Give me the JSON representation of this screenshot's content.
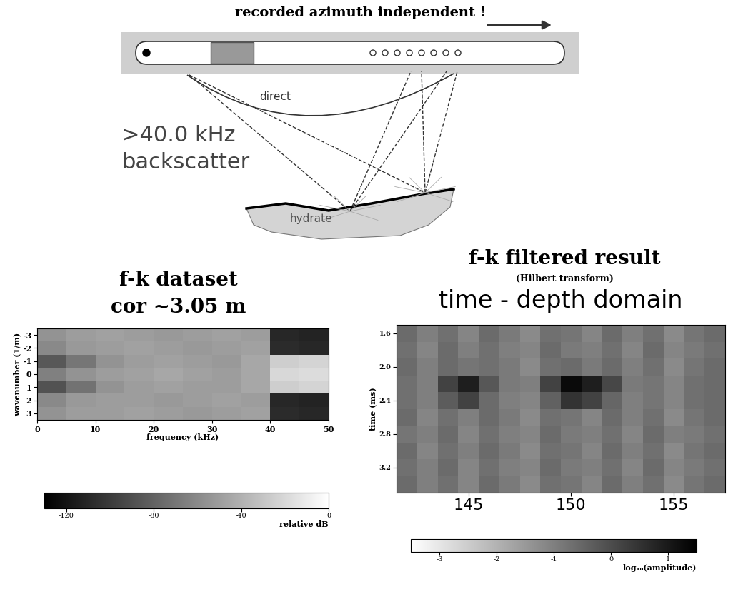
{
  "diagram": {
    "title": "recorded azimuth independent !",
    "source_label": [
      ">40.0 kHz",
      "backscatter"
    ],
    "ray_label": "direct",
    "target_label": "hydrate"
  },
  "chart_data": [
    {
      "type": "heatmap",
      "title": "f-k dataset",
      "subtitle": "cor ~3.05 m",
      "x_label": "frequency (kHz)",
      "y_label": "wavenumber (1/m)",
      "x": [
        2.5,
        7.5,
        12.5,
        17.5,
        22.5,
        27.5,
        32.5,
        37.5,
        42.5,
        47.5
      ],
      "y": [
        -3,
        -2,
        -1,
        0,
        1,
        2,
        3
      ],
      "cells": [
        [
          -55,
          -50,
          -48,
          -50,
          -52,
          -50,
          -48,
          -50,
          -110,
          -112
        ],
        [
          -60,
          -52,
          -50,
          -48,
          -50,
          -52,
          -50,
          -48,
          -108,
          -110
        ],
        [
          -85,
          -70,
          -55,
          -50,
          -48,
          -50,
          -52,
          -45,
          -25,
          -22
        ],
        [
          -65,
          -55,
          -50,
          -48,
          -45,
          -48,
          -50,
          -45,
          -20,
          -18
        ],
        [
          -88,
          -72,
          -55,
          -50,
          -48,
          -50,
          -50,
          -45,
          -25,
          -22
        ],
        [
          -60,
          -52,
          -50,
          -50,
          -52,
          -50,
          -48,
          -50,
          -110,
          -112
        ],
        [
          -55,
          -50,
          -50,
          -48,
          -50,
          -52,
          -50,
          -48,
          -108,
          -110
        ]
      ],
      "xlim": [
        0,
        50
      ],
      "ylim": [
        3.5,
        -3.5
      ],
      "xticks": [
        0,
        10,
        20,
        30,
        40,
        50
      ],
      "yticks": [
        -3,
        -2,
        -1,
        0,
        1,
        2,
        3
      ],
      "colorbar": {
        "range": [
          -130,
          0
        ],
        "ticks": [
          -120,
          -80,
          -40,
          0
        ],
        "label": "relative dB"
      }
    },
    {
      "type": "heatmap",
      "title": "f-k filtered result",
      "subtitle": "(Hilbert transform)",
      "annotation": "time - depth domain",
      "y_label": "time (ms)",
      "x": [
        142,
        143,
        144,
        145,
        146,
        147,
        148,
        149,
        150,
        151,
        152,
        153,
        154,
        155,
        156,
        157
      ],
      "y": [
        1.6,
        1.8,
        2.0,
        2.2,
        2.4,
        2.6,
        2.8,
        3.0,
        3.2,
        3.4
      ],
      "cells": [
        [
          -0.6,
          -1.0,
          -0.7,
          -1.1,
          -0.6,
          -0.9,
          -1.2,
          -0.7,
          -0.8,
          -1.1,
          -0.6,
          -1.0,
          -0.7,
          -1.2,
          -0.8,
          -0.6
        ],
        [
          -0.7,
          -1.1,
          -0.6,
          -1.0,
          -0.7,
          -1.0,
          -1.1,
          -0.6,
          -0.9,
          -1.0,
          -0.7,
          -1.1,
          -0.6,
          -1.1,
          -0.9,
          -0.7
        ],
        [
          -0.6,
          -1.0,
          -0.6,
          -0.8,
          -0.7,
          -0.9,
          -1.2,
          -0.7,
          -0.6,
          -0.9,
          -0.6,
          -1.0,
          -0.7,
          -1.2,
          -0.8,
          -0.6
        ],
        [
          -0.7,
          -1.0,
          0.2,
          0.9,
          -0.2,
          -0.9,
          -1.0,
          0.2,
          1.3,
          0.9,
          0.1,
          -0.9,
          -0.8,
          -1.1,
          -0.7,
          -0.6
        ],
        [
          -0.7,
          -1.0,
          -0.3,
          0.2,
          -0.6,
          -1.0,
          -1.1,
          -0.4,
          0.5,
          0.2,
          -0.5,
          -1.0,
          -0.8,
          -1.1,
          -0.7,
          -0.6
        ],
        [
          -0.6,
          -1.1,
          -0.7,
          -1.0,
          -0.6,
          -0.9,
          -1.2,
          -0.7,
          -0.8,
          -1.1,
          -0.6,
          -1.0,
          -0.7,
          -1.2,
          -0.8,
          -0.6
        ],
        [
          -0.8,
          -1.0,
          -0.6,
          -1.1,
          -0.7,
          -1.0,
          -1.1,
          -0.6,
          -0.9,
          -1.0,
          -0.7,
          -1.1,
          -0.6,
          -1.0,
          -0.9,
          -0.7
        ],
        [
          -0.6,
          -1.1,
          -0.7,
          -1.0,
          -0.6,
          -0.9,
          -1.2,
          -0.7,
          -0.8,
          -1.1,
          -0.6,
          -1.0,
          -0.7,
          -1.2,
          -0.8,
          -0.6
        ],
        [
          -0.7,
          -1.0,
          -0.6,
          -1.1,
          -0.7,
          -1.0,
          -1.1,
          -0.6,
          -0.9,
          -1.0,
          -0.7,
          -1.1,
          -0.6,
          -1.1,
          -0.9,
          -0.7
        ],
        [
          -0.6,
          -1.0,
          -0.7,
          -1.1,
          -0.6,
          -0.9,
          -1.2,
          -0.7,
          -0.8,
          -1.1,
          -0.6,
          -1.0,
          -0.7,
          -1.2,
          -0.8,
          -0.6
        ]
      ],
      "xlim": [
        141.5,
        157.5
      ],
      "ylim": [
        3.5,
        1.5
      ],
      "xticks": [
        145,
        150,
        155
      ],
      "yticks": [
        1.6,
        2.0,
        2.4,
        2.8,
        3.2
      ],
      "colorbar": {
        "range": [
          -3.5,
          1.5
        ],
        "ticks": [
          -3,
          -2,
          -1,
          0,
          1
        ],
        "label": "log₁₀(amplitude)"
      }
    }
  ]
}
